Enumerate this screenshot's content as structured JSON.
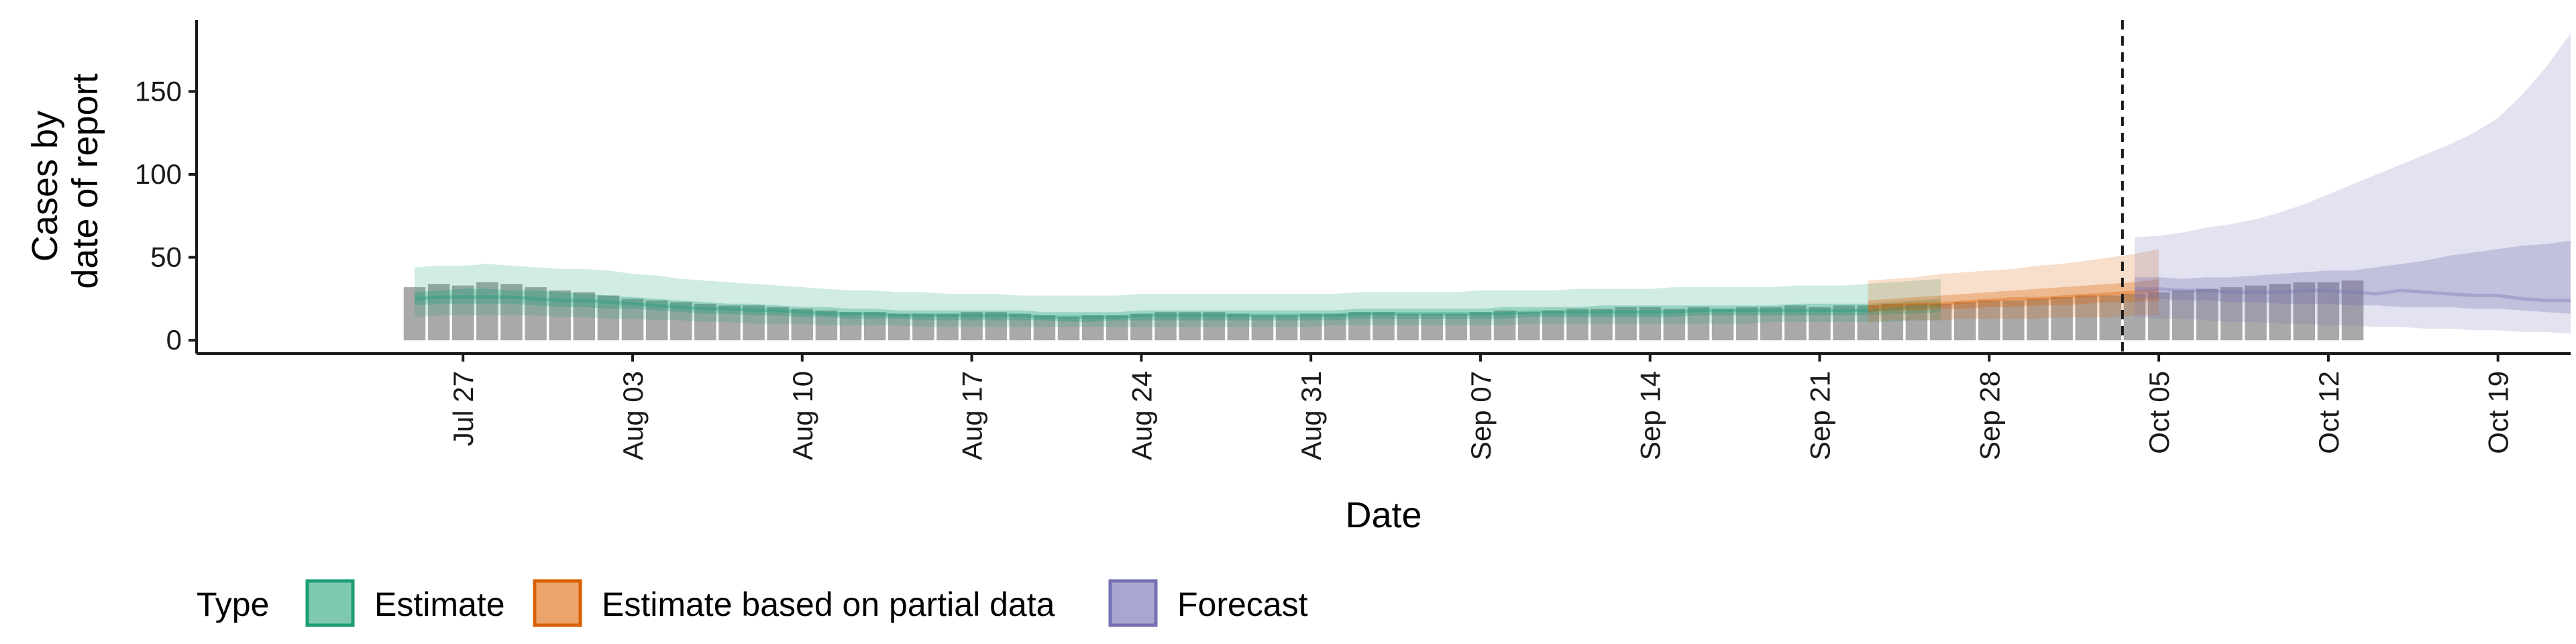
{
  "chart_data": {
    "type": "area",
    "xlabel": "Date",
    "ylabel_lines": [
      "Cases by",
      "date of report"
    ],
    "ylim": [
      -8,
      193
    ],
    "xlim": [
      "2020-07-16",
      "2020-10-22"
    ],
    "y_ticks": [
      0,
      50,
      100,
      150
    ],
    "x_ticks": [
      {
        "date": "2020-07-27",
        "label": "Jul 27"
      },
      {
        "date": "2020-08-03",
        "label": "Aug 03"
      },
      {
        "date": "2020-08-10",
        "label": "Aug 10"
      },
      {
        "date": "2020-08-17",
        "label": "Aug 17"
      },
      {
        "date": "2020-08-24",
        "label": "Aug 24"
      },
      {
        "date": "2020-08-31",
        "label": "Aug 31"
      },
      {
        "date": "2020-09-07",
        "label": "Sep 07"
      },
      {
        "date": "2020-09-14",
        "label": "Sep 14"
      },
      {
        "date": "2020-09-21",
        "label": "Sep 21"
      },
      {
        "date": "2020-09-28",
        "label": "Sep 28"
      },
      {
        "date": "2020-10-05",
        "label": "Oct 05"
      },
      {
        "date": "2020-10-12",
        "label": "Oct 12"
      },
      {
        "date": "2020-10-19",
        "label": "Oct 19"
      }
    ],
    "vline_date": "2020-10-03",
    "grid": false,
    "legend": {
      "position": "bottom",
      "title": "Type",
      "entries": [
        {
          "label": "Estimate",
          "fill": "#7fc9b0",
          "stroke": "#1b9e77"
        },
        {
          "label": "Estimate based on partial data",
          "fill": "#eda46a",
          "stroke": "#d95f02"
        },
        {
          "label": "Forecast",
          "fill": "#a9a6d1",
          "stroke": "#7570b3"
        }
      ]
    },
    "observed_bars": {
      "color": "#a9a9a9",
      "start_date": "2020-07-25",
      "values": [
        32,
        34,
        33,
        35,
        34,
        32,
        30,
        29,
        27,
        25,
        24,
        23,
        22,
        21,
        21,
        20,
        19,
        18,
        17,
        17,
        16,
        16,
        16,
        17,
        17,
        16,
        15,
        14,
        15,
        15,
        16,
        17,
        17,
        17,
        16,
        15,
        15,
        16,
        16,
        17,
        17,
        16,
        16,
        16,
        17,
        18,
        17,
        18,
        19,
        19,
        20,
        20,
        19,
        20,
        19,
        20,
        20,
        21,
        20,
        21,
        21,
        22,
        22,
        22,
        23,
        24,
        24,
        25,
        26,
        27,
        27,
        28,
        29,
        30,
        31,
        32,
        33,
        34,
        35,
        35,
        36
      ]
    },
    "series": [
      {
        "name": "Estimate",
        "color": "#1b9e77",
        "start_date": "2020-07-25",
        "median": [
          25,
          26,
          26,
          26,
          26,
          25,
          24,
          24,
          23,
          22,
          21,
          20,
          19,
          19,
          18,
          18,
          17,
          16,
          16,
          16,
          15,
          15,
          15,
          15,
          15,
          15,
          14,
          14,
          14,
          14,
          15,
          15,
          15,
          15,
          15,
          15,
          15,
          15,
          15,
          16,
          16,
          16,
          16,
          16,
          16,
          16,
          17,
          17,
          17,
          17,
          17,
          17,
          17,
          18,
          18,
          18,
          18,
          18,
          18,
          18,
          18,
          19,
          20,
          21
        ],
        "lower_50": [
          21,
          22,
          22,
          22,
          22,
          21,
          20,
          20,
          19,
          19,
          18,
          17,
          16,
          16,
          15,
          15,
          14,
          14,
          13,
          13,
          13,
          12,
          12,
          12,
          12,
          12,
          12,
          11,
          11,
          12,
          12,
          12,
          12,
          12,
          12,
          12,
          12,
          12,
          12,
          13,
          13,
          13,
          13,
          13,
          13,
          13,
          14,
          14,
          14,
          14,
          14,
          14,
          14,
          15,
          15,
          15,
          15,
          15,
          15,
          15,
          15,
          16,
          16,
          17
        ],
        "upper_50": [
          29,
          30,
          31,
          31,
          30,
          30,
          29,
          28,
          27,
          26,
          25,
          24,
          23,
          22,
          22,
          21,
          20,
          20,
          19,
          19,
          18,
          18,
          18,
          18,
          18,
          18,
          17,
          17,
          17,
          17,
          18,
          18,
          18,
          18,
          18,
          18,
          18,
          18,
          18,
          19,
          19,
          19,
          19,
          19,
          19,
          20,
          20,
          20,
          20,
          21,
          21,
          21,
          21,
          21,
          21,
          21,
          21,
          22,
          22,
          22,
          22,
          23,
          24,
          25
        ],
        "lower_90": [
          14,
          15,
          15,
          15,
          15,
          15,
          14,
          14,
          13,
          13,
          12,
          12,
          11,
          11,
          10,
          10,
          10,
          9,
          9,
          9,
          9,
          8,
          8,
          8,
          8,
          8,
          8,
          8,
          8,
          8,
          8,
          8,
          8,
          8,
          8,
          8,
          8,
          8,
          9,
          9,
          9,
          9,
          9,
          9,
          9,
          9,
          10,
          10,
          10,
          10,
          10,
          10,
          10,
          10,
          10,
          10,
          11,
          11,
          11,
          11,
          11,
          11,
          12,
          12
        ],
        "upper_90": [
          44,
          45,
          45,
          46,
          45,
          44,
          43,
          43,
          42,
          40,
          39,
          37,
          36,
          35,
          34,
          33,
          32,
          31,
          30,
          30,
          29,
          29,
          28,
          28,
          28,
          27,
          27,
          27,
          27,
          27,
          28,
          28,
          28,
          28,
          28,
          28,
          28,
          28,
          28,
          29,
          29,
          29,
          29,
          29,
          30,
          30,
          30,
          30,
          31,
          31,
          31,
          31,
          32,
          32,
          32,
          32,
          32,
          33,
          33,
          33,
          34,
          35,
          36,
          37
        ]
      },
      {
        "name": "Estimate based on partial data",
        "color": "#d95f02",
        "start_date": "2020-09-23",
        "median": [
          20,
          21,
          22,
          22,
          23,
          24,
          25,
          25,
          26,
          27,
          28,
          29,
          30
        ],
        "lower_50": [
          17,
          18,
          18,
          19,
          19,
          20,
          20,
          21,
          21,
          22,
          23,
          23,
          24
        ],
        "upper_50": [
          24,
          25,
          26,
          27,
          28,
          29,
          30,
          31,
          32,
          33,
          34,
          35,
          37
        ],
        "lower_90": [
          11,
          12,
          12,
          12,
          13,
          13,
          13,
          13,
          14,
          14,
          14,
          15,
          15
        ],
        "upper_90": [
          36,
          37,
          38,
          40,
          41,
          42,
          43,
          45,
          46,
          48,
          50,
          52,
          55
        ]
      },
      {
        "name": "Forecast",
        "color": "#7570b3",
        "start_date": "2020-10-04",
        "median": [
          31,
          31,
          30,
          30,
          29,
          29,
          29,
          30,
          30,
          29,
          28,
          30,
          29,
          28,
          27,
          27,
          25,
          24,
          24
        ],
        "lower_50": [
          25,
          25,
          24,
          24,
          23,
          23,
          22,
          22,
          22,
          21,
          21,
          20,
          20,
          20,
          19,
          19,
          18,
          17,
          16
        ],
        "upper_50": [
          38,
          38,
          37,
          38,
          38,
          39,
          40,
          41,
          42,
          42,
          44,
          46,
          48,
          51,
          53,
          55,
          57,
          58,
          60
        ],
        "lower_90": [
          14,
          13,
          13,
          12,
          11,
          11,
          10,
          10,
          9,
          9,
          8,
          8,
          7,
          7,
          6,
          6,
          5,
          5,
          4
        ],
        "upper_90": [
          62,
          63,
          65,
          68,
          70,
          73,
          77,
          82,
          88,
          94,
          100,
          106,
          112,
          118,
          125,
          134,
          148,
          165,
          185
        ]
      }
    ]
  }
}
